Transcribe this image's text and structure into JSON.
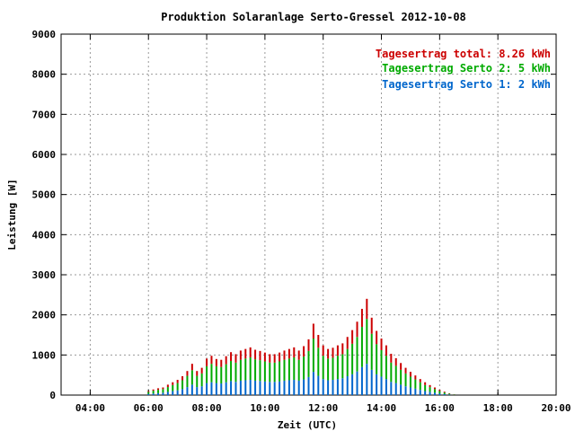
{
  "chart_data": {
    "type": "bar",
    "stacked": true,
    "title": "Produktion Solaranlage Serto-Gressel 2012-10-08",
    "xlabel": "Zeit (UTC)",
    "ylabel": "Leistung [W]",
    "xlim": [
      "03:00",
      "20:00"
    ],
    "ylim": [
      0,
      9000
    ],
    "grid": true,
    "legend_position": "top-right",
    "x_ticks": [
      "04:00",
      "06:00",
      "08:00",
      "10:00",
      "12:00",
      "14:00",
      "16:00",
      "18:00",
      "20:00"
    ],
    "y_ticks": [
      "0",
      "1000",
      "2000",
      "3000",
      "4000",
      "5000",
      "6000",
      "7000",
      "8000",
      "9000"
    ],
    "legend": [
      {
        "text": "Tagesertrag total: 8.26 kWh",
        "color": "#cc0000"
      },
      {
        "text": "Tagesertrag Serto 2: 5 kWh",
        "color": "#00aa00"
      },
      {
        "text": "Tagesertrag Serto 1: 2 kWh",
        "color": "#0066cc"
      }
    ],
    "colors": {
      "total": "#cc0000",
      "serto2": "#00aa00",
      "serto1": "#0066cc"
    },
    "x": [
      "06:00",
      "06:10",
      "06:20",
      "06:30",
      "06:40",
      "06:50",
      "07:00",
      "07:10",
      "07:20",
      "07:30",
      "07:40",
      "07:50",
      "08:00",
      "08:10",
      "08:20",
      "08:30",
      "08:40",
      "08:50",
      "09:00",
      "09:10",
      "09:20",
      "09:30",
      "09:40",
      "09:50",
      "10:00",
      "10:10",
      "10:20",
      "10:30",
      "10:40",
      "10:50",
      "11:00",
      "11:10",
      "11:20",
      "11:30",
      "11:40",
      "11:50",
      "12:00",
      "12:10",
      "12:20",
      "12:30",
      "12:40",
      "12:50",
      "13:00",
      "13:10",
      "13:20",
      "13:30",
      "13:40",
      "13:50",
      "14:00",
      "14:10",
      "14:20",
      "14:30",
      "14:40",
      "14:50",
      "15:00",
      "15:10",
      "15:20",
      "15:30",
      "15:40",
      "15:50",
      "16:00",
      "16:10",
      "16:20",
      "16:30"
    ],
    "series": [
      {
        "key": "serto1",
        "values": [
          30,
          40,
          50,
          60,
          80,
          100,
          120,
          150,
          200,
          260,
          200,
          220,
          300,
          320,
          300,
          290,
          320,
          350,
          330,
          360,
          370,
          380,
          360,
          350,
          340,
          330,
          330,
          340,
          360,
          370,
          380,
          360,
          390,
          450,
          580,
          480,
          400,
          370,
          380,
          400,
          420,
          470,
          520,
          590,
          700,
          780,
          630,
          520,
          460,
          400,
          330,
          300,
          260,
          220,
          190,
          160,
          130,
          100,
          80,
          60,
          40,
          25,
          15,
          5
        ]
      },
      {
        "key": "serto2",
        "values": [
          50,
          70,
          80,
          90,
          120,
          150,
          180,
          220,
          280,
          360,
          280,
          320,
          420,
          460,
          420,
          410,
          450,
          500,
          480,
          520,
          540,
          560,
          530,
          520,
          500,
          480,
          480,
          500,
          520,
          540,
          560,
          520,
          570,
          650,
          830,
          700,
          580,
          540,
          550,
          580,
          600,
          680,
          760,
          860,
          1000,
          1120,
          900,
          750,
          660,
          580,
          480,
          430,
          370,
          320,
          270,
          230,
          190,
          150,
          120,
          90,
          60,
          40,
          20,
          10
        ]
      },
      {
        "key": "total_rest",
        "values": [
          20,
          30,
          40,
          40,
          60,
          70,
          80,
          100,
          120,
          160,
          120,
          140,
          190,
          200,
          180,
          180,
          200,
          220,
          210,
          230,
          240,
          250,
          240,
          230,
          220,
          210,
          210,
          220,
          230,
          240,
          250,
          230,
          260,
          290,
          370,
          320,
          260,
          240,
          250,
          260,
          270,
          300,
          340,
          380,
          450,
          500,
          400,
          330,
          290,
          260,
          220,
          190,
          170,
          140,
          120,
          100,
          80,
          70,
          50,
          40,
          30,
          20,
          10,
          5
        ]
      }
    ]
  }
}
